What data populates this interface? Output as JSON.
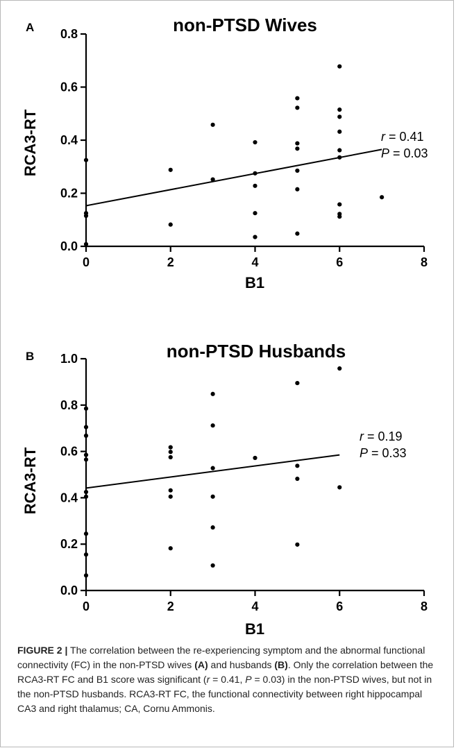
{
  "chart_data": [
    {
      "type": "scatter",
      "panel_label": "A",
      "title": "non-PTSD Wives",
      "xlabel": "B1",
      "ylabel": "RCA3-RT",
      "xlim": [
        0,
        8
      ],
      "ylim": [
        0,
        0.8
      ],
      "x_ticks": [
        "0",
        "2",
        "4",
        "6",
        "8"
      ],
      "y_ticks": [
        "0.0",
        "0.2",
        "0.4",
        "0.6",
        "0.8"
      ],
      "x_tick_values": [
        0,
        2,
        4,
        6,
        8
      ],
      "y_tick_values": [
        0,
        0.2,
        0.4,
        0.6,
        0.8
      ],
      "grid": false,
      "points": [
        {
          "x": 0,
          "y": 0.325
        },
        {
          "x": 0,
          "y": 0.125
        },
        {
          "x": 0,
          "y": 0.115
        },
        {
          "x": 0,
          "y": 0.008
        },
        {
          "x": 2,
          "y": 0.288
        },
        {
          "x": 2,
          "y": 0.082
        },
        {
          "x": 3,
          "y": 0.458
        },
        {
          "x": 3,
          "y": 0.252
        },
        {
          "x": 4,
          "y": 0.392
        },
        {
          "x": 4,
          "y": 0.275
        },
        {
          "x": 4,
          "y": 0.228
        },
        {
          "x": 4,
          "y": 0.125
        },
        {
          "x": 4,
          "y": 0.035
        },
        {
          "x": 5,
          "y": 0.558
        },
        {
          "x": 5,
          "y": 0.522
        },
        {
          "x": 5,
          "y": 0.388
        },
        {
          "x": 5,
          "y": 0.368
        },
        {
          "x": 5,
          "y": 0.285
        },
        {
          "x": 5,
          "y": 0.215
        },
        {
          "x": 5,
          "y": 0.048
        },
        {
          "x": 6,
          "y": 0.678
        },
        {
          "x": 6,
          "y": 0.515
        },
        {
          "x": 6,
          "y": 0.488
        },
        {
          "x": 6,
          "y": 0.432
        },
        {
          "x": 6,
          "y": 0.362
        },
        {
          "x": 6,
          "y": 0.335
        },
        {
          "x": 6,
          "y": 0.158
        },
        {
          "x": 6,
          "y": 0.122
        },
        {
          "x": 6,
          "y": 0.112
        },
        {
          "x": 7,
          "y": 0.185
        }
      ],
      "regression_line": {
        "x1": 0,
        "y1": 0.153,
        "x2": 7,
        "y2": 0.365
      },
      "annotation": {
        "r_label": "r",
        "r_value": " = 0.41",
        "p_label": "P",
        "p_value": " = 0.03"
      }
    },
    {
      "type": "scatter",
      "panel_label": "B",
      "title": "non-PTSD Husbands",
      "xlabel": "B1",
      "ylabel": "RCA3-RT",
      "xlim": [
        0,
        8
      ],
      "ylim": [
        0,
        1.0
      ],
      "x_ticks": [
        "0",
        "2",
        "4",
        "6",
        "8"
      ],
      "y_ticks": [
        "0.0",
        "0.2",
        "0.4",
        "0.6",
        "0.8",
        "1.0"
      ],
      "x_tick_values": [
        0,
        2,
        4,
        6,
        8
      ],
      "y_tick_values": [
        0,
        0.2,
        0.4,
        0.6,
        0.8,
        1.0
      ],
      "grid": false,
      "points": [
        {
          "x": 0,
          "y": 0.785
        },
        {
          "x": 0,
          "y": 0.705
        },
        {
          "x": 0,
          "y": 0.668
        },
        {
          "x": 0,
          "y": 0.585
        },
        {
          "x": 0,
          "y": 0.565
        },
        {
          "x": 0,
          "y": 0.425
        },
        {
          "x": 0,
          "y": 0.405
        },
        {
          "x": 0,
          "y": 0.245
        },
        {
          "x": 0,
          "y": 0.155
        },
        {
          "x": 0,
          "y": 0.065
        },
        {
          "x": 2,
          "y": 0.618
        },
        {
          "x": 2,
          "y": 0.598
        },
        {
          "x": 2,
          "y": 0.575
        },
        {
          "x": 2,
          "y": 0.432
        },
        {
          "x": 2,
          "y": 0.405
        },
        {
          "x": 2,
          "y": 0.182
        },
        {
          "x": 3,
          "y": 0.848
        },
        {
          "x": 3,
          "y": 0.712
        },
        {
          "x": 3,
          "y": 0.528
        },
        {
          "x": 3,
          "y": 0.405
        },
        {
          "x": 3,
          "y": 0.272
        },
        {
          "x": 3,
          "y": 0.108
        },
        {
          "x": 4,
          "y": 0.572
        },
        {
          "x": 5,
          "y": 0.895
        },
        {
          "x": 5,
          "y": 0.538
        },
        {
          "x": 5,
          "y": 0.482
        },
        {
          "x": 5,
          "y": 0.198
        },
        {
          "x": 6,
          "y": 0.958
        },
        {
          "x": 6,
          "y": 0.445
        }
      ],
      "regression_line": {
        "x1": 0,
        "y1": 0.442,
        "x2": 6,
        "y2": 0.585
      },
      "annotation": {
        "r_label": "r",
        "r_value": " = 0.19",
        "p_label": "P",
        "p_value": " = 0.33"
      }
    }
  ],
  "caption": {
    "fig_label": "FIGURE 2 |",
    "t1": " The correlation between the re-experiencing symptom and the abnormal functional connectivity (FC) in the non-PTSD wives ",
    "b1": "(A)",
    "t2": " and husbands ",
    "b2": "(B)",
    "t3": ". Only the correlation between the RCA3-RT FC and B1 score was significant (",
    "i1": "r",
    "t4": " = 0.41, ",
    "i2": "P",
    "t5": " = 0.03) in the non-PTSD wives, but not in the non-PTSD husbands. RCA3-RT FC, the functional connectivity between right hippocampal CA3 and right thalamus; CA, Cornu Ammonis."
  }
}
